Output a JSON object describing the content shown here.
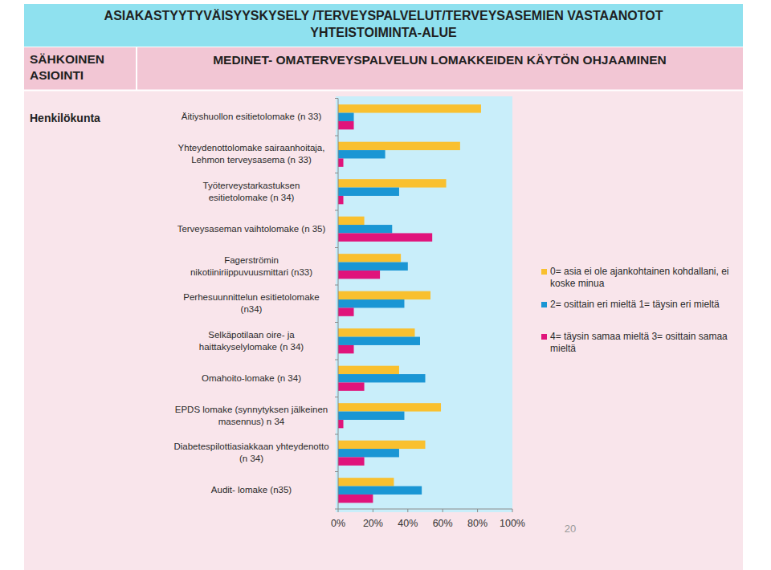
{
  "slide": {
    "title_lines": [
      "ASIAKASTYYTYVÄISYYSKYSELY /TERVEYSPALVELUT/TERVEYSASEMIEN VASTAANOTOT",
      "YHTEISTOIMINTA-ALUE"
    ],
    "section": "SÄHKOINEN\nASIOINTI",
    "subtitle": "MEDINET- OMATERVEYSPALVELUN LOMAKKEIDEN KÄYTÖN OHJAAMINEN",
    "group_label": "Henkilökunta",
    "page_number": "20"
  },
  "chart_data": {
    "type": "bar",
    "orientation": "horizontal",
    "categories": [
      "Äitiyshuollon esitietolomake (n 33)",
      "Yhteydenottolomake sairaanhoitaja,\nLehmon terveysasema (n 33)",
      "Työterveystarkastuksen\nesitietolomake (n 34)",
      "Terveysaseman vaihtolomake (n 35)",
      "Fagerströmin\nnikotiiniriippuvuusmittari (n33)",
      "Perhesuunnittelun esitietolomake\n(n34)",
      "Selkäpotilaan oire- ja\nhaittakyselylomake (n 34)",
      "Omahoito-lomake (n 34)",
      "EPDS lomake (synnytyksen jälkeinen\nmasennus) n 34",
      "Diabetespilottiasiakkaan yhteydenotto\n(n 34)",
      "Audit- lomake (n35)"
    ],
    "series": [
      {
        "name": "0= asia ei ole ajankohtainen kohdallani, ei koske minua",
        "color": "#f9c02f",
        "values": [
          82,
          70,
          62,
          15,
          36,
          53,
          44,
          35,
          59,
          50,
          32
        ]
      },
      {
        "name": "2= osittain eri mieltä 1= täysin eri mieltä",
        "color": "#1a96d4",
        "values": [
          9,
          27,
          35,
          31,
          40,
          38,
          47,
          50,
          38,
          35,
          48
        ]
      },
      {
        "name": "4= täysin samaa mieltä 3= osittain samaa mieltä",
        "color": "#e0137b",
        "values": [
          9,
          3,
          3,
          54,
          24,
          9,
          9,
          15,
          3,
          15,
          20
        ]
      }
    ],
    "xlim": [
      0,
      100
    ],
    "xticks": [
      {
        "value": 0,
        "label": "0%"
      },
      {
        "value": 20,
        "label": "20%"
      },
      {
        "value": 40,
        "label": "40%"
      },
      {
        "value": 60,
        "label": "60%"
      },
      {
        "value": 80,
        "label": "80%"
      },
      {
        "value": 100,
        "label": "100%"
      }
    ],
    "grid": false,
    "legend": "right"
  }
}
